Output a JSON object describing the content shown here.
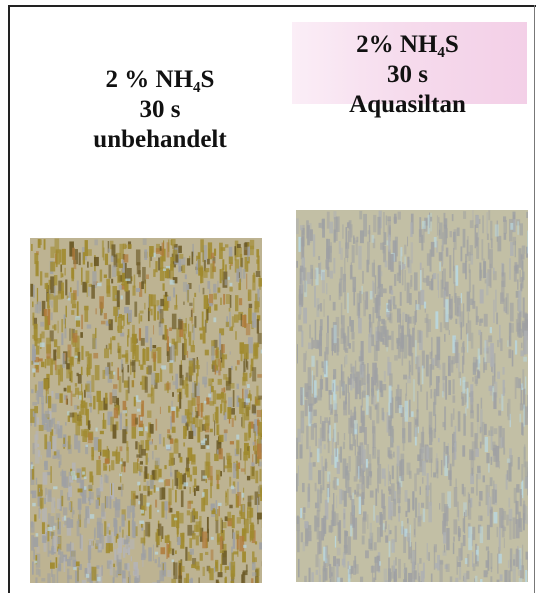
{
  "left_sample": {
    "line1": "2 % NH₄S",
    "line2": "30 s",
    "line3": "unbehandelt"
  },
  "right_sample": {
    "line1": "2% NH₄S",
    "line2": "30 s",
    "line3": "Aquasiltan"
  },
  "colors": {
    "left_base": "#bdb392",
    "left_corrosion": "#a08a2e",
    "left_dark": "#6c5a26",
    "right_base": "#c2bfa5",
    "gray_streak": "#9ea0a3",
    "blue_speck": "#b9d8e2",
    "pink_highlight": "#f4d3ea"
  }
}
